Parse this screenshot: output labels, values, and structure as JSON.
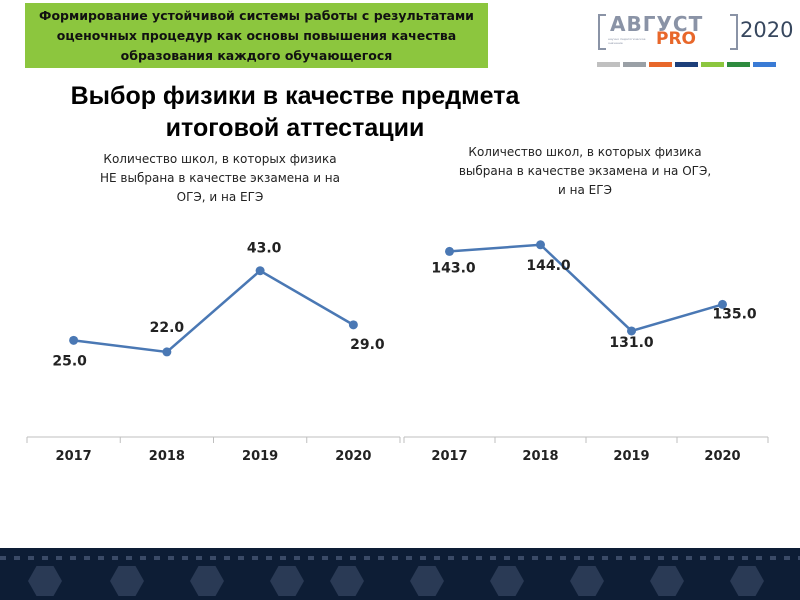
{
  "banner": {
    "lines": [
      "Формирование устойчивой системы работы с результатами",
      "оценочных процедур как основы повышения качества",
      "образования каждого обучающегося"
    ]
  },
  "logo": {
    "main": "АВГУСТ",
    "pro": "PRO",
    "year": "2020",
    "small": "научно педагогическое значение"
  },
  "colors": {
    "banner": "#8cc63e",
    "line": "#4a78b4",
    "marker": "#4a78b4",
    "axis": "#bfbfbf",
    "colorbar": [
      "#c0c0c0",
      "#9aa0a6",
      "#e8672a",
      "#1d3f7a",
      "#8cc63e",
      "#2e8b3e",
      "#3a7bd5"
    ]
  },
  "page_title": {
    "line1": "Выбор физики в качестве предмета",
    "line2": "итоговой аттестации"
  },
  "chart_data": [
    {
      "type": "line",
      "title_lines": [
        "Количество школ, в которых физика",
        "НЕ выбрана в качестве экзамена и на",
        "ОГЭ, и на ЕГЭ"
      ],
      "categories": [
        "2017",
        "2018",
        "2019",
        "2020"
      ],
      "values": [
        25,
        22,
        43,
        29
      ],
      "labels": [
        "25.0",
        "22.0",
        "43.0",
        "29.0"
      ],
      "ylim": [
        0,
        60
      ]
    },
    {
      "type": "line",
      "title_lines": [
        "Количество школ, в которых физика",
        "выбрана в качестве экзамена и на ОГЭ,",
        "и на ЕГЭ"
      ],
      "categories": [
        "2017",
        "2018",
        "2019",
        "2020"
      ],
      "values": [
        143,
        144,
        131,
        135
      ],
      "labels": [
        "143.0",
        "144.0",
        "131.0",
        "135.0"
      ],
      "ylim": [
        115,
        150
      ]
    }
  ]
}
